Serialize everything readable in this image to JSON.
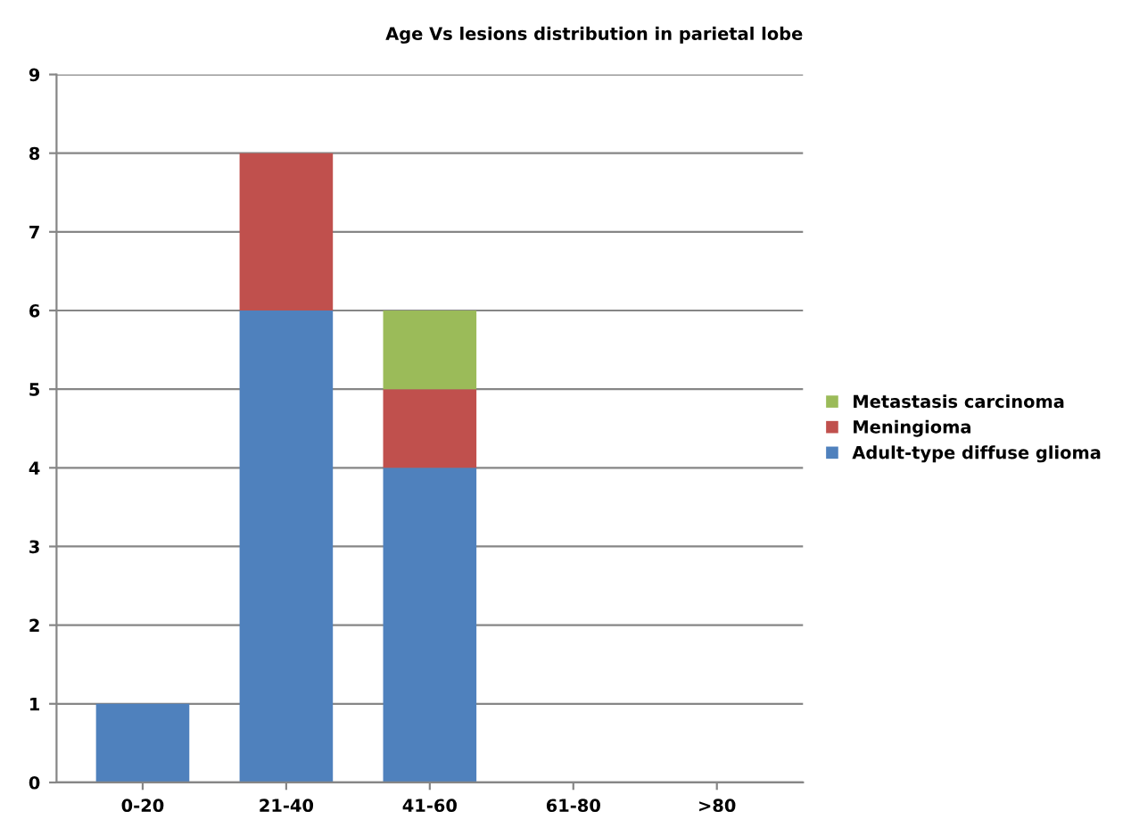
{
  "chart_data": {
    "type": "bar",
    "title": "Age Vs lesions distribution in parietal lobe",
    "categories": [
      "0-20",
      "21-40",
      "41-60",
      "61-80",
      ">80"
    ],
    "stacked": true,
    "series": [
      {
        "name": "Adult-type diffuse glioma",
        "color": "#4f81bd",
        "values": [
          1,
          6,
          4,
          0,
          0
        ]
      },
      {
        "name": "Meningioma",
        "color": "#c0504d",
        "values": [
          0,
          2,
          1,
          0,
          0
        ]
      },
      {
        "name": "Metastasis carcinoma",
        "color": "#9bbb59",
        "values": [
          0,
          0,
          1,
          0,
          0
        ]
      }
    ],
    "ylim": [
      0,
      9
    ],
    "yticks": [
      0,
      1,
      2,
      3,
      4,
      5,
      6,
      7,
      8,
      9
    ],
    "grid": "y",
    "legend": "right"
  }
}
